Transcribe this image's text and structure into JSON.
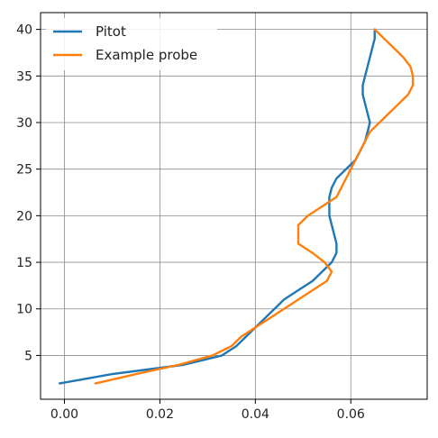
{
  "chart_data": {
    "type": "line",
    "title": "",
    "xlabel": "",
    "ylabel": "",
    "xlim": [
      -0.005,
      0.076
    ],
    "ylim": [
      0.3,
      41.8
    ],
    "xticks": [
      0.0,
      0.02,
      0.04,
      0.06
    ],
    "xtick_labels": [
      "0.00",
      "0.02",
      "0.04",
      "0.06"
    ],
    "yticks": [
      5,
      10,
      15,
      20,
      25,
      30,
      35,
      40
    ],
    "ytick_labels": [
      "5",
      "10",
      "15",
      "20",
      "25",
      "30",
      "35",
      "40"
    ],
    "grid": true,
    "legend_position": "top-left",
    "series": [
      {
        "name": "Pitot",
        "color": "#1f77b4",
        "points": [
          [
            -0.001,
            2
          ],
          [
            0.01,
            3
          ],
          [
            0.025,
            4
          ],
          [
            0.033,
            5
          ],
          [
            0.036,
            6
          ],
          [
            0.038,
            7
          ],
          [
            0.04,
            8
          ],
          [
            0.042,
            9
          ],
          [
            0.044,
            10
          ],
          [
            0.046,
            11
          ],
          [
            0.049,
            12
          ],
          [
            0.052,
            13
          ],
          [
            0.054,
            14
          ],
          [
            0.056,
            15
          ],
          [
            0.057,
            16
          ],
          [
            0.057,
            17
          ],
          [
            0.0565,
            18
          ],
          [
            0.056,
            19
          ],
          [
            0.0555,
            20
          ],
          [
            0.0555,
            21
          ],
          [
            0.0555,
            22
          ],
          [
            0.056,
            23
          ],
          [
            0.057,
            24
          ],
          [
            0.059,
            25
          ],
          [
            0.061,
            26
          ],
          [
            0.062,
            27
          ],
          [
            0.063,
            28
          ],
          [
            0.0635,
            29
          ],
          [
            0.064,
            30
          ],
          [
            0.0635,
            31
          ],
          [
            0.063,
            32
          ],
          [
            0.0625,
            33
          ],
          [
            0.0625,
            34
          ],
          [
            0.063,
            35
          ],
          [
            0.0635,
            36
          ],
          [
            0.064,
            37
          ],
          [
            0.0645,
            38
          ],
          [
            0.065,
            39
          ],
          [
            0.065,
            40
          ]
        ]
      },
      {
        "name": "Example probe",
        "color": "#ff7f0e",
        "points": [
          [
            0.0065,
            2
          ],
          [
            0.015,
            3
          ],
          [
            0.024,
            4
          ],
          [
            0.031,
            5
          ],
          [
            0.035,
            6
          ],
          [
            0.037,
            7
          ],
          [
            0.04,
            8
          ],
          [
            0.043,
            9
          ],
          [
            0.046,
            10
          ],
          [
            0.049,
            11
          ],
          [
            0.052,
            12
          ],
          [
            0.055,
            13
          ],
          [
            0.056,
            14
          ],
          [
            0.0545,
            15
          ],
          [
            0.052,
            16
          ],
          [
            0.049,
            17
          ],
          [
            0.049,
            18
          ],
          [
            0.049,
            19
          ],
          [
            0.051,
            20
          ],
          [
            0.054,
            21
          ],
          [
            0.057,
            22
          ],
          [
            0.058,
            23
          ],
          [
            0.059,
            24
          ],
          [
            0.06,
            25
          ],
          [
            0.061,
            26
          ],
          [
            0.062,
            27
          ],
          [
            0.063,
            28
          ],
          [
            0.064,
            29
          ],
          [
            0.066,
            30
          ],
          [
            0.068,
            31
          ],
          [
            0.07,
            32
          ],
          [
            0.072,
            33
          ],
          [
            0.073,
            34
          ],
          [
            0.073,
            35
          ],
          [
            0.0725,
            36
          ],
          [
            0.071,
            37
          ],
          [
            0.069,
            38
          ],
          [
            0.067,
            39
          ],
          [
            0.065,
            40
          ]
        ]
      }
    ]
  }
}
